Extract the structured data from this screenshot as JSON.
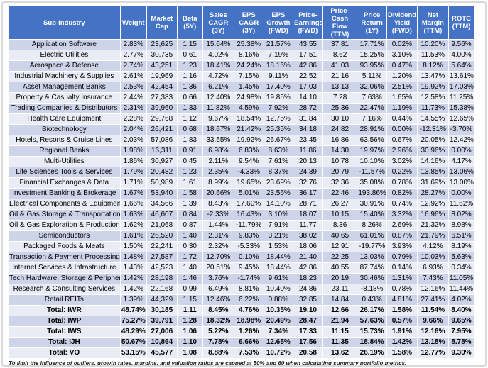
{
  "colors": {
    "header_bg": "#4472C4",
    "header_text": "#FFFFFF",
    "row_band_dark": "#CDD3E8",
    "row_band_light": "#E9EBF5",
    "grid_border": "#FFFFFF",
    "frame_border": "#D9D9D9",
    "body_text": "#000000"
  },
  "chart_data": {
    "type": "table",
    "columns": [
      "Sub-Industry",
      "Weight",
      "Market Cap",
      "Beta (5Y)",
      "Sales CAGR (3Y)",
      "EPS CAGR (3Y)",
      "EPS Growth (FWD)",
      "Price-Earnings (FWD)",
      "Price-Cash Flow (TTM)",
      "Price Return (1Y)",
      "Dividend Yield (FWD)",
      "Net Margin (TTM)",
      "ROTC (TTM)"
    ],
    "rows": [
      [
        "Application Software",
        "2.83%",
        "23,625",
        "1.15",
        "15.64%",
        "25.38%",
        "21.57%",
        "43.55",
        "37.81",
        "17.71%",
        "0.02%",
        "10.20%",
        "9.56%"
      ],
      [
        "Electric Utilities",
        "2.77%",
        "30,735",
        "0.61",
        "4.02%",
        "8.16%",
        "7.19%",
        "17.51",
        "8.62",
        "15.25%",
        "3.10%",
        "11.53%",
        "4.00%"
      ],
      [
        "Aerospace & Defense",
        "2.74%",
        "43,251",
        "1.23",
        "18.41%",
        "24.24%",
        "18.16%",
        "42.86",
        "41.03",
        "93.95%",
        "0.47%",
        "8.12%",
        "5.64%"
      ],
      [
        "Industrial Machinery & Supplies",
        "2.61%",
        "19,969",
        "1.16",
        "4.72%",
        "7.15%",
        "9.11%",
        "22.52",
        "21.16",
        "5.11%",
        "1.20%",
        "13.47%",
        "13.61%"
      ],
      [
        "Asset Management Banks",
        "2.53%",
        "42,454",
        "1.36",
        "6.21%",
        "1.45%",
        "17.40%",
        "17.03",
        "13.13",
        "32.06%",
        "2.51%",
        "19.92%",
        "17.03%"
      ],
      [
        "Property & Casualty Insurance",
        "2.44%",
        "27,383",
        "0.66",
        "12.40%",
        "24.98%",
        "19.85%",
        "14.10",
        "7.28",
        "7.63%",
        "1.65%",
        "12.58%",
        "11.25%"
      ],
      [
        "Trading Companies & Distributors",
        "2.31%",
        "39,960",
        "1.33",
        "11.82%",
        "4.59%",
        "7.92%",
        "28.72",
        "25.36",
        "22.47%",
        "1.19%",
        "11.73%",
        "15.38%"
      ],
      [
        "Health Care Equipment",
        "2.28%",
        "29,768",
        "1.12",
        "9.67%",
        "18.54%",
        "12.75%",
        "31.84",
        "30.10",
        "7.16%",
        "0.44%",
        "14.55%",
        "12.65%"
      ],
      [
        "Biotechnology",
        "2.04%",
        "26,421",
        "0.68",
        "18.67%",
        "21.42%",
        "25.35%",
        "34.18",
        "24.82",
        "28.91%",
        "0.00%",
        "-12.31%",
        "-3.70%"
      ],
      [
        "Hotels, Resorts & Cruise Lines",
        "2.03%",
        "57,086",
        "1.83",
        "33.55%",
        "19.92%",
        "26.67%",
        "23.45",
        "16.86",
        "63.56%",
        "0.67%",
        "20.05%",
        "12.42%"
      ],
      [
        "Regional Banks",
        "1.98%",
        "16,311",
        "0.91",
        "6.98%",
        "6.83%",
        "8.63%",
        "11.86",
        "14.30",
        "19.97%",
        "2.96%",
        "30.96%",
        "0.00%"
      ],
      [
        "Multi-Utilities",
        "1.86%",
        "30,927",
        "0.45",
        "2.11%",
        "9.54%",
        "7.61%",
        "20.13",
        "10.78",
        "10.10%",
        "3.02%",
        "14.16%",
        "4.17%"
      ],
      [
        "Life Sciences Tools & Services",
        "1.79%",
        "20,482",
        "1.23",
        "2.35%",
        "-4.33%",
        "8.37%",
        "24.39",
        "20.79",
        "-11.57%",
        "0.22%",
        "13.85%",
        "13.06%"
      ],
      [
        "Financial Exchanges & Data",
        "1.71%",
        "50,989",
        "1.61",
        "8.99%",
        "19.65%",
        "23.69%",
        "32.76",
        "32.36",
        "35.08%",
        "0.78%",
        "31.69%",
        "13.00%"
      ],
      [
        "Investment Banking & Brokerage",
        "1.67%",
        "53,940",
        "1.58",
        "20.66%",
        "5.01%",
        "23.56%",
        "36.17",
        "22.46",
        "193.86%",
        "0.82%",
        "28.27%",
        "0.00%"
      ],
      [
        "Electrical Components & Equipment",
        "1.66%",
        "34,566",
        "1.39",
        "8.43%",
        "17.60%",
        "14.10%",
        "28.71",
        "26.27",
        "30.91%",
        "0.74%",
        "12.92%",
        "11.62%"
      ],
      [
        "Oil & Gas Storage & Transportation",
        "1.63%",
        "46,607",
        "0.84",
        "-2.33%",
        "16.43%",
        "3.10%",
        "18.07",
        "10.15",
        "15.40%",
        "3.32%",
        "16.96%",
        "8.02%"
      ],
      [
        "Oil & Gas Exploration & Production",
        "1.62%",
        "21,068",
        "0.87",
        "1.44%",
        "-11.79%",
        "7.91%",
        "11.77",
        "8.36",
        "8.26%",
        "2.69%",
        "21.32%",
        "8.98%"
      ],
      [
        "Semiconductors",
        "1.61%",
        "26,520",
        "1.40",
        "2.31%",
        "9.83%",
        "3.21%",
        "38.02",
        "40.65",
        "61.01%",
        "0.87%",
        "21.79%",
        "6.51%"
      ],
      [
        "Packaged Foods & Meats",
        "1.50%",
        "22,241",
        "0.30",
        "2.32%",
        "-5.33%",
        "1.53%",
        "18.06",
        "12.91",
        "-19.77%",
        "3.93%",
        "4.12%",
        "8.19%"
      ],
      [
        "Transaction & Payment Processing",
        "1.48%",
        "27,587",
        "1.72",
        "12.70%",
        "0.10%",
        "18.44%",
        "21.40",
        "22.25",
        "13.03%",
        "0.79%",
        "10.03%",
        "5.63%"
      ],
      [
        "Internet Services & Infrastructure",
        "1.43%",
        "42,523",
        "1.40",
        "20.51%",
        "9.45%",
        "18.44%",
        "42.86",
        "40.55",
        "87.74%",
        "0.14%",
        "6.93%",
        "0.34%"
      ],
      [
        "Tech Hardware, Storage & Peripherals",
        "1.42%",
        "28,198",
        "1.46",
        "3.76%",
        "-1.74%",
        "9.61%",
        "18.23",
        "20.19",
        "30.46%",
        "1.31%",
        "7.43%",
        "11.05%"
      ],
      [
        "Research & Consulting Services",
        "1.42%",
        "22,168",
        "0.99",
        "6.49%",
        "8.81%",
        "10.40%",
        "24.86",
        "23.11",
        "-8.18%",
        "0.78%",
        "12.16%",
        "11.44%"
      ],
      [
        "Retail REITs",
        "1.39%",
        "44,329",
        "1.15",
        "12.46%",
        "6.22%",
        "0.88%",
        "32.85",
        "14.84",
        "0.43%",
        "4.81%",
        "27.41%",
        "4.02%"
      ]
    ],
    "totals": [
      [
        "Total: IWR",
        "48.74%",
        "30,185",
        "1.11",
        "8.45%",
        "4.76%",
        "10.35%",
        "19.10",
        "12.66",
        "26.17%",
        "1.58%",
        "11.54%",
        "8.40%"
      ],
      [
        "Total: IWP",
        "75.27%",
        "39,791",
        "1.28",
        "18.32%",
        "18.98%",
        "20.49%",
        "28.47",
        "21.94",
        "57.63%",
        "0.57%",
        "9.66%",
        "9.65%"
      ],
      [
        "Total: IWS",
        "48.29%",
        "27,006",
        "1.06",
        "5.22%",
        "1.26%",
        "7.34%",
        "17.33",
        "11.15",
        "15.73%",
        "1.91%",
        "12.16%",
        "7.95%"
      ],
      [
        "Total: IJH",
        "50.67%",
        "10,864",
        "1.10",
        "7.78%",
        "6.66%",
        "12.65%",
        "17.56",
        "11.35",
        "18.84%",
        "1.42%",
        "13.18%",
        "8.78%"
      ],
      [
        "Total: VO",
        "53.15%",
        "45,577",
        "1.08",
        "8.88%",
        "7.53%",
        "10.72%",
        "20.58",
        "13.62",
        "26.19%",
        "1.58%",
        "12.77%",
        "9.30%"
      ]
    ],
    "footnote": "To limit the influence of outliers, growth rates, margins, and valuation ratios are capped at 50% and 60 when calculating summary portfolio metrics."
  }
}
